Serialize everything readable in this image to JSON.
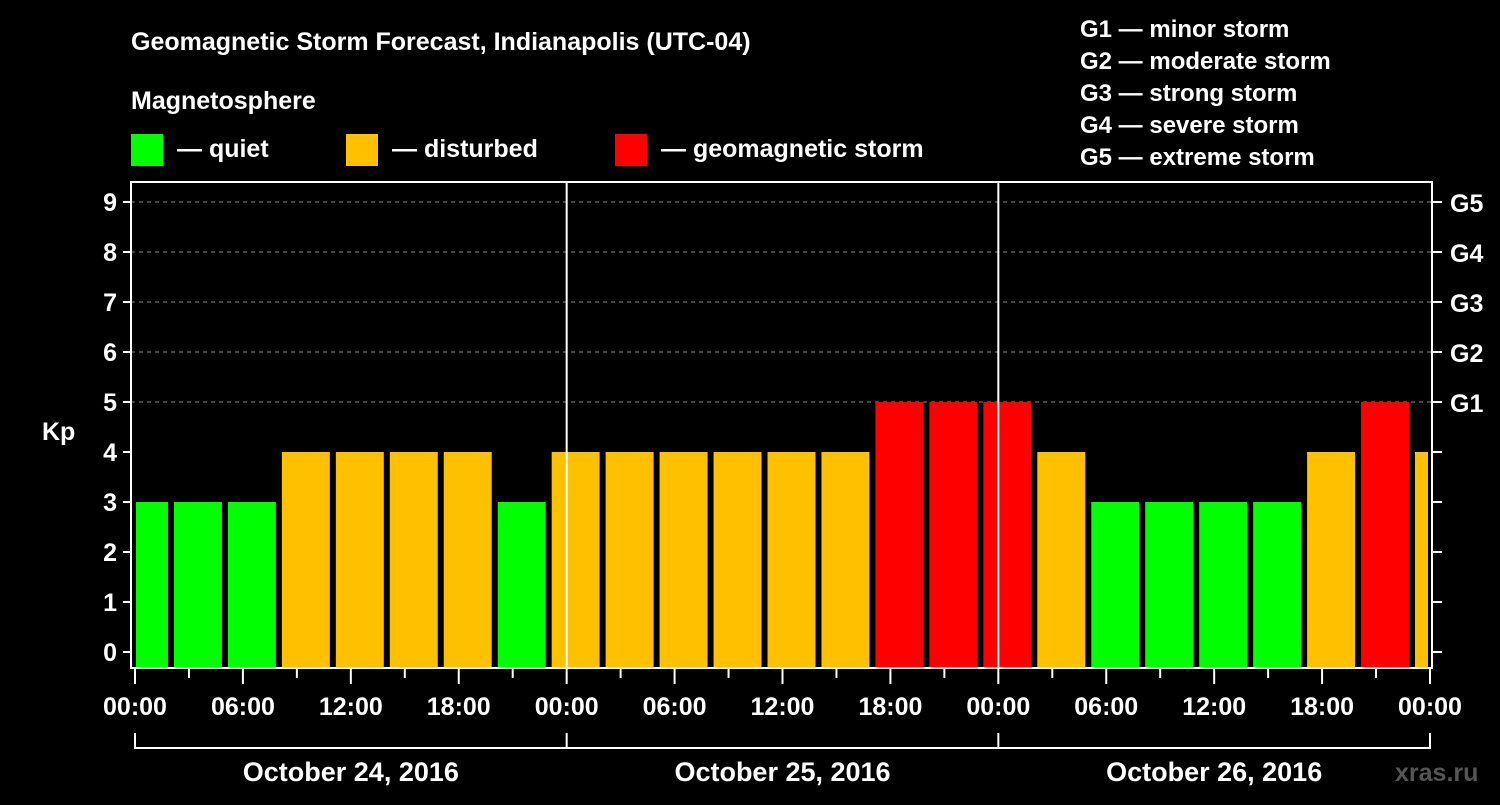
{
  "chart_data": {
    "type": "bar",
    "title": "Geomagnetic Storm Forecast, Indianapolis (UTC-04)",
    "legend_title": "Magnetosphere",
    "legend": [
      {
        "label": "— quiet",
        "color": "#00ff00"
      },
      {
        "label": "— disturbed",
        "color": "#ffc000"
      },
      {
        "label": "— geomagnetic storm",
        "color": "#ff0000"
      }
    ],
    "scale_legend": [
      "G1 — minor storm",
      "G2 — moderate storm",
      "G3 — strong storm",
      "G4 — severe storm",
      "G5 — extreme storm"
    ],
    "ylabel": "Kp",
    "ylim": [
      0,
      9
    ],
    "yticks": [
      0,
      1,
      2,
      3,
      4,
      5,
      6,
      7,
      8,
      9
    ],
    "right_ticks": [
      {
        "kp": 5,
        "label": "G1"
      },
      {
        "kp": 6,
        "label": "G2"
      },
      {
        "kp": 7,
        "label": "G3"
      },
      {
        "kp": 8,
        "label": "G4"
      },
      {
        "kp": 9,
        "label": "G5"
      }
    ],
    "x_hours_range": [
      0,
      72
    ],
    "xtick_labels": [
      "00:00",
      "06:00",
      "12:00",
      "18:00",
      "00:00",
      "06:00",
      "12:00",
      "18:00",
      "00:00",
      "06:00",
      "12:00",
      "18:00",
      "00:00"
    ],
    "days": [
      "October 24, 2016",
      "October 25, 2016",
      "October 26, 2016"
    ],
    "bar_interval_hours": 3,
    "bar_start_hours": [
      -1,
      2,
      5,
      8,
      11,
      14,
      17,
      20,
      23,
      26,
      29,
      32,
      35,
      38,
      41,
      44,
      47,
      50,
      53,
      56,
      59,
      62,
      65,
      68,
      71
    ],
    "values": [
      3,
      3,
      3,
      4,
      4,
      4,
      4,
      3,
      4,
      4,
      4,
      4,
      4,
      4,
      5,
      5,
      5,
      4,
      3,
      3,
      3,
      3,
      4,
      5,
      4
    ],
    "thresholds": {
      "quiet_below": 4,
      "storm_from": 5
    },
    "watermark": "xras.ru"
  }
}
